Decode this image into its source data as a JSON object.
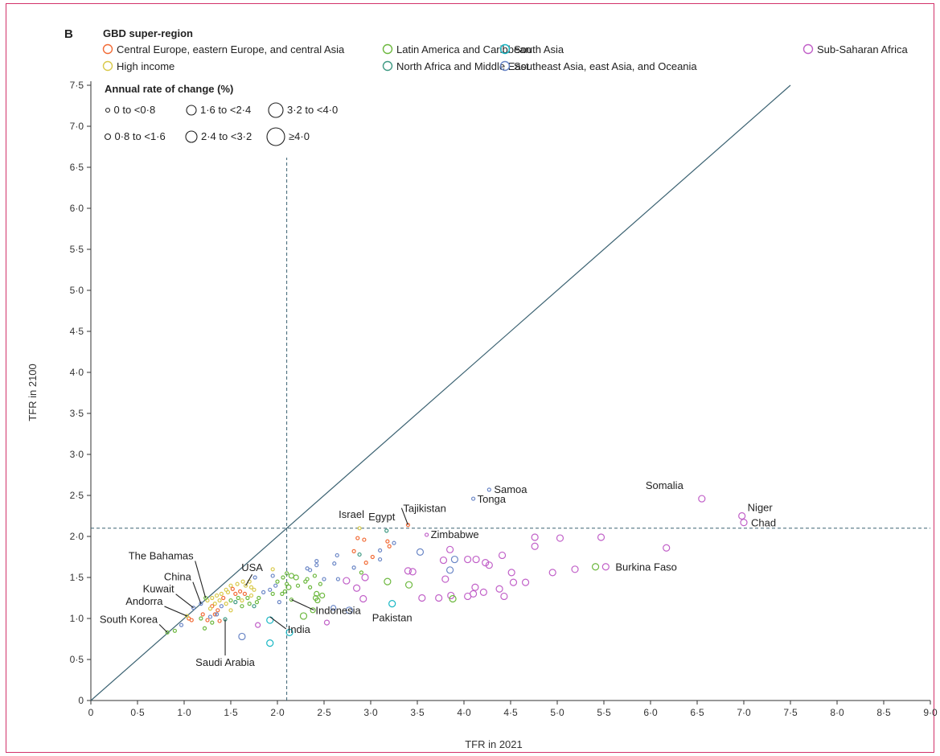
{
  "panel_label": "B",
  "chart_data": {
    "type": "scatter",
    "xlabel": "TFR in 2021",
    "ylabel": "TFR in 2100",
    "xlim": [
      0,
      9.0
    ],
    "ylim": [
      0,
      7.5
    ],
    "x_ticks": [
      "0",
      "0·5",
      "1·0",
      "1·5",
      "2·0",
      "2·5",
      "3·0",
      "3·5",
      "4·0",
      "4·5",
      "5·0",
      "5·5",
      "6·0",
      "6·5",
      "7·0",
      "7·5",
      "8·0",
      "8·5",
      "9·0"
    ],
    "y_ticks": [
      "0",
      "0·5",
      "1·0",
      "1·5",
      "2·0",
      "2·5",
      "3·0",
      "3·5",
      "4·0",
      "4·5",
      "5·0",
      "5·5",
      "6·0",
      "6·5",
      "7·0",
      "7·5"
    ],
    "replacement_level": 2.1,
    "diagonal": [
      [
        0,
        0
      ],
      [
        7.5,
        7.5
      ]
    ],
    "grid": false,
    "legend_title": "GBD super-region",
    "legend_placement": "top",
    "size_legend_title": "Annual rate of change (%)",
    "size_legend_placement": "top-left",
    "series": [
      {
        "name": "Central Europe, eastern Europe, and central Asia",
        "color": "#f26b36",
        "key": "ceeca"
      },
      {
        "name": "High income",
        "color": "#d9c94a",
        "key": "hi"
      },
      {
        "name": "Latin America and Caribbean",
        "color": "#6cb83e",
        "key": "lac"
      },
      {
        "name": "North Africa and Middle East",
        "color": "#3f9a83",
        "key": "name"
      },
      {
        "name": "South Asia",
        "color": "#19b7c4",
        "key": "sa"
      },
      {
        "name": "Southeast Asia, east Asia, and Oceania",
        "color": "#6a86c6",
        "key": "seao"
      },
      {
        "name": "Sub-Saharan Africa",
        "color": "#c160c8",
        "key": "ssa"
      }
    ],
    "size_classes": [
      {
        "label": "0 to <0·8",
        "r": 2
      },
      {
        "label": "0·8 to <1·6",
        "r": 3
      },
      {
        "label": "1·6 to <2·4",
        "r": 4
      },
      {
        "label": "2·4 to <3·2",
        "r": 5
      },
      {
        "label": "3·2 to <4·0",
        "r": 6
      },
      {
        "label": "≥4·0",
        "r": 7
      }
    ],
    "annotations": [
      {
        "label": "Somalia",
        "x": 6.55,
        "y": 2.46
      },
      {
        "label": "Niger",
        "x": 6.98,
        "y": 2.25
      },
      {
        "label": "Chad",
        "x": 7.0,
        "y": 2.17
      },
      {
        "label": "Samoa",
        "x": 4.27,
        "y": 2.57
      },
      {
        "label": "Tonga",
        "x": 4.1,
        "y": 2.46
      },
      {
        "label": "Tajikistan",
        "x": 3.4,
        "y": 2.14
      },
      {
        "label": "Israel",
        "x": 2.88,
        "y": 2.1
      },
      {
        "label": "Egypt",
        "x": 3.17,
        "y": 2.07
      },
      {
        "label": "Zimbabwe",
        "x": 3.6,
        "y": 2.02
      },
      {
        "label": "Burkina Faso",
        "x": 5.52,
        "y": 1.63
      },
      {
        "label": "Pakistan",
        "x": 3.23,
        "y": 1.18
      },
      {
        "label": "India",
        "x": 1.92,
        "y": 1.02
      },
      {
        "label": "Indonesia",
        "x": 2.15,
        "y": 1.23
      },
      {
        "label": "USA",
        "x": 1.66,
        "y": 1.4
      },
      {
        "label": "The Bahamas",
        "x": 1.23,
        "y": 1.25
      },
      {
        "label": "China",
        "x": 1.18,
        "y": 1.18
      },
      {
        "label": "Kuwait",
        "x": 1.1,
        "y": 1.13
      },
      {
        "label": "Andorra",
        "x": 1.03,
        "y": 1.03
      },
      {
        "label": "South Korea",
        "x": 0.82,
        "y": 0.83
      },
      {
        "label": "Saudi Arabia",
        "x": 1.44,
        "y": 0.99
      }
    ],
    "points": [
      {
        "x": 6.55,
        "y": 2.46,
        "s": "ssa",
        "c": 2
      },
      {
        "x": 6.98,
        "y": 2.25,
        "s": "ssa",
        "c": 2
      },
      {
        "x": 7.0,
        "y": 2.17,
        "s": "ssa",
        "c": 2
      },
      {
        "x": 6.17,
        "y": 1.86,
        "s": "ssa",
        "c": 2
      },
      {
        "x": 5.52,
        "y": 1.63,
        "s": "ssa",
        "c": 2
      },
      {
        "x": 5.41,
        "y": 1.63,
        "s": "lac",
        "c": 2
      },
      {
        "x": 5.47,
        "y": 1.99,
        "s": "ssa",
        "c": 2
      },
      {
        "x": 5.03,
        "y": 1.98,
        "s": "ssa",
        "c": 2
      },
      {
        "x": 5.19,
        "y": 1.6,
        "s": "ssa",
        "c": 2
      },
      {
        "x": 4.95,
        "y": 1.56,
        "s": "ssa",
        "c": 2
      },
      {
        "x": 4.76,
        "y": 1.99,
        "s": "ssa",
        "c": 2
      },
      {
        "x": 4.76,
        "y": 1.88,
        "s": "ssa",
        "c": 2
      },
      {
        "x": 4.66,
        "y": 1.44,
        "s": "ssa",
        "c": 2
      },
      {
        "x": 4.53,
        "y": 1.44,
        "s": "ssa",
        "c": 2
      },
      {
        "x": 4.51,
        "y": 1.56,
        "s": "ssa",
        "c": 2
      },
      {
        "x": 4.41,
        "y": 1.77,
        "s": "ssa",
        "c": 2
      },
      {
        "x": 4.43,
        "y": 1.27,
        "s": "ssa",
        "c": 2
      },
      {
        "x": 4.38,
        "y": 1.36,
        "s": "ssa",
        "c": 2
      },
      {
        "x": 4.27,
        "y": 1.65,
        "s": "ssa",
        "c": 2
      },
      {
        "x": 4.23,
        "y": 1.68,
        "s": "ssa",
        "c": 2
      },
      {
        "x": 4.21,
        "y": 1.32,
        "s": "ssa",
        "c": 2
      },
      {
        "x": 4.13,
        "y": 1.72,
        "s": "ssa",
        "c": 2
      },
      {
        "x": 4.12,
        "y": 1.38,
        "s": "ssa",
        "c": 2
      },
      {
        "x": 4.1,
        "y": 1.3,
        "s": "ssa",
        "c": 2
      },
      {
        "x": 4.04,
        "y": 1.72,
        "s": "ssa",
        "c": 2
      },
      {
        "x": 4.04,
        "y": 1.27,
        "s": "ssa",
        "c": 2
      },
      {
        "x": 3.9,
        "y": 1.72,
        "s": "seao",
        "c": 2
      },
      {
        "x": 3.85,
        "y": 1.84,
        "s": "ssa",
        "c": 2
      },
      {
        "x": 3.85,
        "y": 1.59,
        "s": "seao",
        "c": 2
      },
      {
        "x": 3.86,
        "y": 1.28,
        "s": "ssa",
        "c": 2
      },
      {
        "x": 3.88,
        "y": 1.24,
        "s": "lac",
        "c": 2
      },
      {
        "x": 3.8,
        "y": 1.48,
        "s": "ssa",
        "c": 2
      },
      {
        "x": 3.78,
        "y": 1.71,
        "s": "ssa",
        "c": 2
      },
      {
        "x": 3.73,
        "y": 1.25,
        "s": "ssa",
        "c": 2
      },
      {
        "x": 3.55,
        "y": 1.25,
        "s": "ssa",
        "c": 2
      },
      {
        "x": 3.53,
        "y": 1.81,
        "s": "seao",
        "c": 2
      },
      {
        "x": 3.45,
        "y": 1.57,
        "s": "ssa",
        "c": 2
      },
      {
        "x": 3.4,
        "y": 1.58,
        "s": "ssa",
        "c": 2
      },
      {
        "x": 3.41,
        "y": 1.41,
        "s": "lac",
        "c": 2
      },
      {
        "x": 3.23,
        "y": 1.18,
        "s": "sa",
        "c": 2
      },
      {
        "x": 3.18,
        "y": 1.45,
        "s": "lac",
        "c": 2
      },
      {
        "x": 2.94,
        "y": 1.5,
        "s": "ssa",
        "c": 2
      },
      {
        "x": 2.92,
        "y": 1.24,
        "s": "ssa",
        "c": 2
      },
      {
        "x": 2.85,
        "y": 1.37,
        "s": "ssa",
        "c": 2
      },
      {
        "x": 2.77,
        "y": 1.1,
        "s": "seao",
        "c": 2
      },
      {
        "x": 2.74,
        "y": 1.46,
        "s": "ssa",
        "c": 2
      },
      {
        "x": 2.53,
        "y": 0.95,
        "s": "ssa",
        "c": 1
      },
      {
        "x": 2.6,
        "y": 1.13,
        "s": "seao",
        "c": 1
      },
      {
        "x": 2.28,
        "y": 1.03,
        "s": "lac",
        "c": 2
      },
      {
        "x": 2.13,
        "y": 0.83,
        "s": "sa",
        "c": 2
      },
      {
        "x": 1.92,
        "y": 0.7,
        "s": "sa",
        "c": 2
      },
      {
        "x": 1.92,
        "y": 0.98,
        "s": "sa",
        "c": 2
      },
      {
        "x": 1.62,
        "y": 0.78,
        "s": "seao",
        "c": 2
      },
      {
        "x": 1.79,
        "y": 0.92,
        "s": "ssa",
        "c": 1
      },
      {
        "x": 3.4,
        "y": 2.14,
        "s": "ceeca",
        "c": 0
      },
      {
        "x": 2.88,
        "y": 2.1,
        "s": "hi",
        "c": 0
      },
      {
        "x": 3.17,
        "y": 2.07,
        "s": "name",
        "c": 0
      },
      {
        "x": 3.6,
        "y": 2.02,
        "s": "ssa",
        "c": 0
      },
      {
        "x": 4.27,
        "y": 2.57,
        "s": "seao",
        "c": 0
      },
      {
        "x": 4.1,
        "y": 2.46,
        "s": "seao",
        "c": 0
      },
      {
        "x": 2.86,
        "y": 1.98,
        "s": "ceeca",
        "c": 0
      },
      {
        "x": 2.93,
        "y": 1.96,
        "s": "ceeca",
        "c": 0
      },
      {
        "x": 3.18,
        "y": 1.94,
        "s": "ceeca",
        "c": 0
      },
      {
        "x": 3.25,
        "y": 1.92,
        "s": "seao",
        "c": 0
      },
      {
        "x": 3.2,
        "y": 1.88,
        "s": "ceeca",
        "c": 0
      },
      {
        "x": 3.1,
        "y": 1.83,
        "s": "seao",
        "c": 0
      },
      {
        "x": 2.82,
        "y": 1.82,
        "s": "ceeca",
        "c": 0
      },
      {
        "x": 2.88,
        "y": 1.78,
        "s": "name",
        "c": 0
      },
      {
        "x": 3.02,
        "y": 1.75,
        "s": "ceeca",
        "c": 0
      },
      {
        "x": 3.1,
        "y": 1.72,
        "s": "seao",
        "c": 0
      },
      {
        "x": 2.95,
        "y": 1.68,
        "s": "ceeca",
        "c": 0
      },
      {
        "x": 2.82,
        "y": 1.62,
        "s": "seao",
        "c": 0
      },
      {
        "x": 2.9,
        "y": 1.56,
        "s": "lac",
        "c": 0
      },
      {
        "x": 2.64,
        "y": 1.77,
        "s": "seao",
        "c": 0
      },
      {
        "x": 2.61,
        "y": 1.67,
        "s": "seao",
        "c": 0
      },
      {
        "x": 2.42,
        "y": 1.7,
        "s": "seao",
        "c": 0
      },
      {
        "x": 2.42,
        "y": 1.65,
        "s": "seao",
        "c": 0
      },
      {
        "x": 2.32,
        "y": 1.61,
        "s": "seao",
        "c": 0
      },
      {
        "x": 2.35,
        "y": 1.59,
        "s": "seao",
        "c": 0
      },
      {
        "x": 2.1,
        "y": 1.55,
        "s": "lac",
        "c": 0
      },
      {
        "x": 2.2,
        "y": 1.5,
        "s": "lac",
        "c": 1
      },
      {
        "x": 2.15,
        "y": 1.52,
        "s": "lac",
        "c": 1
      },
      {
        "x": 2.06,
        "y": 1.5,
        "s": "lac",
        "c": 0
      },
      {
        "x": 2.4,
        "y": 1.52,
        "s": "lac",
        "c": 0
      },
      {
        "x": 2.32,
        "y": 1.48,
        "s": "lac",
        "c": 0
      },
      {
        "x": 2.3,
        "y": 1.45,
        "s": "lac",
        "c": 0
      },
      {
        "x": 2.46,
        "y": 1.42,
        "s": "lac",
        "c": 0
      },
      {
        "x": 2.5,
        "y": 1.48,
        "s": "seao",
        "c": 0
      },
      {
        "x": 2.65,
        "y": 1.48,
        "s": "seao",
        "c": 0
      },
      {
        "x": 2.35,
        "y": 1.38,
        "s": "lac",
        "c": 0
      },
      {
        "x": 2.22,
        "y": 1.4,
        "s": "lac",
        "c": 0
      },
      {
        "x": 2.1,
        "y": 1.42,
        "s": "lac",
        "c": 0
      },
      {
        "x": 2.0,
        "y": 1.45,
        "s": "lac",
        "c": 0
      },
      {
        "x": 1.95,
        "y": 1.52,
        "s": "seao",
        "c": 0
      },
      {
        "x": 1.98,
        "y": 1.4,
        "s": "seao",
        "c": 0
      },
      {
        "x": 2.08,
        "y": 1.33,
        "s": "lac",
        "c": 0
      },
      {
        "x": 2.12,
        "y": 1.38,
        "s": "lac",
        "c": 1
      },
      {
        "x": 1.92,
        "y": 1.35,
        "s": "seao",
        "c": 0
      },
      {
        "x": 1.85,
        "y": 1.32,
        "s": "seao",
        "c": 0
      },
      {
        "x": 1.95,
        "y": 1.3,
        "s": "lac",
        "c": 0
      },
      {
        "x": 2.05,
        "y": 1.3,
        "s": "lac",
        "c": 0
      },
      {
        "x": 2.42,
        "y": 1.3,
        "s": "lac",
        "c": 1
      },
      {
        "x": 2.48,
        "y": 1.28,
        "s": "lac",
        "c": 1
      },
      {
        "x": 2.41,
        "y": 1.25,
        "s": "lac",
        "c": 1
      },
      {
        "x": 2.43,
        "y": 1.22,
        "s": "lac",
        "c": 1
      },
      {
        "x": 2.15,
        "y": 1.23,
        "s": "lac",
        "c": 0
      },
      {
        "x": 1.95,
        "y": 1.6,
        "s": "hi",
        "c": 0
      },
      {
        "x": 1.66,
        "y": 1.4,
        "s": "hi",
        "c": 0
      },
      {
        "x": 1.76,
        "y": 1.5,
        "s": "seao",
        "c": 0
      },
      {
        "x": 1.7,
        "y": 1.45,
        "s": "hi",
        "c": 0
      },
      {
        "x": 1.63,
        "y": 1.45,
        "s": "hi",
        "c": 0
      },
      {
        "x": 1.57,
        "y": 1.42,
        "s": "hi",
        "c": 0
      },
      {
        "x": 1.5,
        "y": 1.4,
        "s": "hi",
        "c": 0
      },
      {
        "x": 1.45,
        "y": 1.35,
        "s": "hi",
        "c": 0
      },
      {
        "x": 1.4,
        "y": 1.3,
        "s": "hi",
        "c": 0
      },
      {
        "x": 1.35,
        "y": 1.28,
        "s": "hi",
        "c": 0
      },
      {
        "x": 1.3,
        "y": 1.25,
        "s": "hi",
        "c": 0
      },
      {
        "x": 1.25,
        "y": 1.22,
        "s": "hi",
        "c": 0
      },
      {
        "x": 1.55,
        "y": 1.3,
        "s": "ceeca",
        "c": 0
      },
      {
        "x": 1.6,
        "y": 1.33,
        "s": "ceeca",
        "c": 0
      },
      {
        "x": 1.52,
        "y": 1.36,
        "s": "ceeca",
        "c": 0
      },
      {
        "x": 1.47,
        "y": 1.32,
        "s": "hi",
        "c": 0
      },
      {
        "x": 1.42,
        "y": 1.25,
        "s": "ceeca",
        "c": 0
      },
      {
        "x": 1.38,
        "y": 1.22,
        "s": "hi",
        "c": 0
      },
      {
        "x": 1.33,
        "y": 1.18,
        "s": "hi",
        "c": 0
      },
      {
        "x": 1.3,
        "y": 1.15,
        "s": "ceeca",
        "c": 0
      },
      {
        "x": 1.28,
        "y": 1.12,
        "s": "hi",
        "c": 0
      },
      {
        "x": 1.36,
        "y": 1.1,
        "s": "ceeca",
        "c": 0
      },
      {
        "x": 1.33,
        "y": 1.05,
        "s": "ceeca",
        "c": 0
      },
      {
        "x": 1.28,
        "y": 1.02,
        "s": "seao",
        "c": 0
      },
      {
        "x": 1.25,
        "y": 0.98,
        "s": "ceeca",
        "c": 0
      },
      {
        "x": 1.2,
        "y": 1.05,
        "s": "ceeca",
        "c": 0
      },
      {
        "x": 1.18,
        "y": 1.0,
        "s": "lac",
        "c": 0
      },
      {
        "x": 1.08,
        "y": 0.98,
        "s": "ceeca",
        "c": 0
      },
      {
        "x": 1.05,
        "y": 1.0,
        "s": "ceeca",
        "c": 0
      },
      {
        "x": 1.03,
        "y": 1.03,
        "s": "hi",
        "c": 0
      },
      {
        "x": 0.97,
        "y": 0.92,
        "s": "seao",
        "c": 0
      },
      {
        "x": 0.9,
        "y": 0.85,
        "s": "lac",
        "c": 0
      },
      {
        "x": 0.82,
        "y": 0.83,
        "s": "lac",
        "c": 0
      },
      {
        "x": 1.1,
        "y": 1.13,
        "s": "seao",
        "c": 0
      },
      {
        "x": 1.18,
        "y": 1.18,
        "s": "seao",
        "c": 0
      },
      {
        "x": 1.23,
        "y": 1.25,
        "s": "lac",
        "c": 0
      },
      {
        "x": 1.38,
        "y": 0.97,
        "s": "ceeca",
        "c": 0
      },
      {
        "x": 1.44,
        "y": 0.99,
        "s": "name",
        "c": 0
      },
      {
        "x": 1.22,
        "y": 0.88,
        "s": "lac",
        "c": 0
      },
      {
        "x": 1.3,
        "y": 0.95,
        "s": "lac",
        "c": 0
      },
      {
        "x": 1.45,
        "y": 1.18,
        "s": "hi",
        "c": 0
      },
      {
        "x": 1.5,
        "y": 1.22,
        "s": "lac",
        "c": 0
      },
      {
        "x": 1.55,
        "y": 1.2,
        "s": "name",
        "c": 0
      },
      {
        "x": 1.62,
        "y": 1.22,
        "s": "hi",
        "c": 0
      },
      {
        "x": 1.68,
        "y": 1.25,
        "s": "lac",
        "c": 0
      },
      {
        "x": 1.72,
        "y": 1.28,
        "s": "hi",
        "c": 0
      },
      {
        "x": 1.75,
        "y": 1.35,
        "s": "hi",
        "c": 0
      },
      {
        "x": 1.72,
        "y": 1.38,
        "s": "hi",
        "c": 0
      },
      {
        "x": 1.65,
        "y": 1.3,
        "s": "ceeca",
        "c": 0
      },
      {
        "x": 1.58,
        "y": 1.25,
        "s": "lac",
        "c": 0
      },
      {
        "x": 1.62,
        "y": 1.15,
        "s": "lac",
        "c": 0
      },
      {
        "x": 1.7,
        "y": 1.18,
        "s": "lac",
        "c": 0
      },
      {
        "x": 1.78,
        "y": 1.2,
        "s": "lac",
        "c": 0
      },
      {
        "x": 1.8,
        "y": 1.25,
        "s": "lac",
        "c": 0
      },
      {
        "x": 1.75,
        "y": 1.15,
        "s": "name",
        "c": 0
      },
      {
        "x": 1.5,
        "y": 1.1,
        "s": "hi",
        "c": 0
      },
      {
        "x": 1.4,
        "y": 1.15,
        "s": "seao",
        "c": 0
      },
      {
        "x": 1.35,
        "y": 1.05,
        "s": "seao",
        "c": 0
      },
      {
        "x": 2.38,
        "y": 1.1,
        "s": "lac",
        "c": 1
      },
      {
        "x": 2.02,
        "y": 1.2,
        "s": "seao",
        "c": 0
      }
    ]
  }
}
